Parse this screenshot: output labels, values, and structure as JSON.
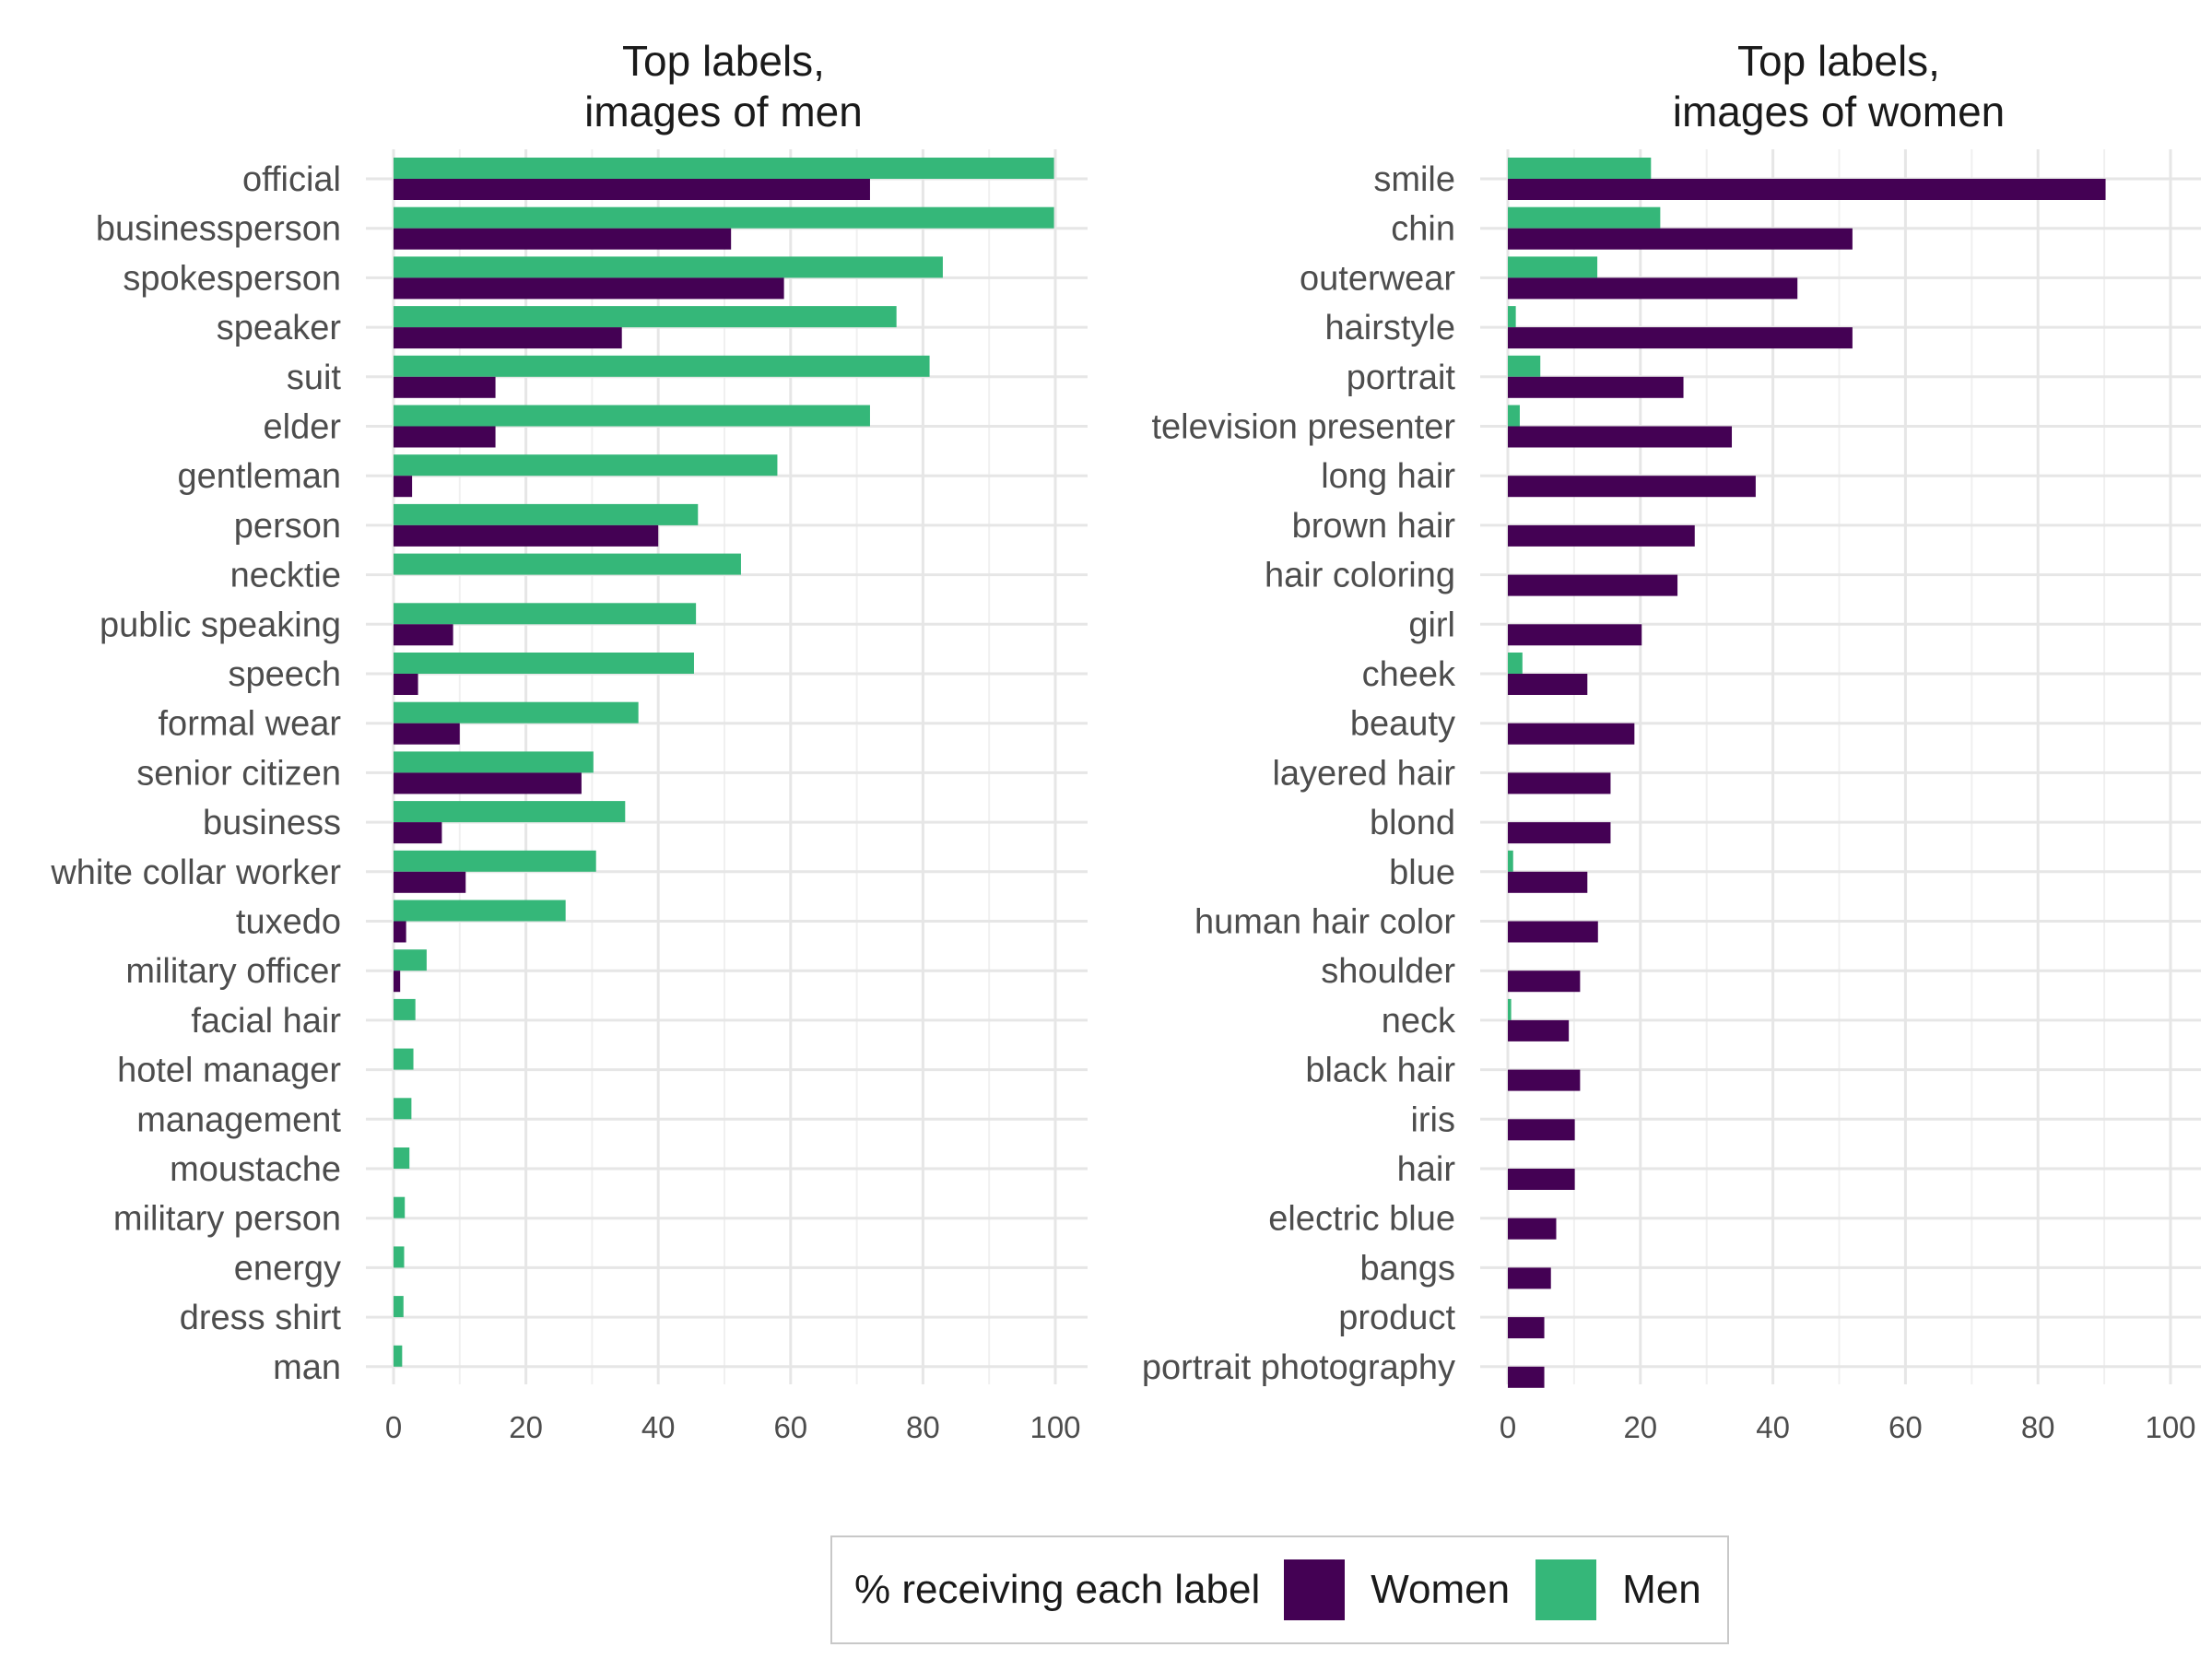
{
  "colors": {
    "women": "#440154",
    "men": "#35b779"
  },
  "legend": {
    "title": "% receiving each label",
    "women_label": "Women",
    "men_label": "Men"
  },
  "chart_data": [
    {
      "type": "bar",
      "orientation": "horizontal",
      "title": "Top labels,\nimages of men",
      "title_lines": [
        "Top labels,",
        "images of men"
      ],
      "xlim": [
        0,
        100
      ],
      "xticks": [
        0,
        20,
        40,
        60,
        80,
        100
      ],
      "grid": true,
      "categories": [
        "official",
        "businessperson",
        "spokesperson",
        "speaker",
        "suit",
        "elder",
        "gentleman",
        "person",
        "necktie",
        "public speaking",
        "speech",
        "formal wear",
        "senior citizen",
        "business",
        "white collar worker",
        "tuxedo",
        "military officer",
        "facial hair",
        "hotel manager",
        "management",
        "moustache",
        "military person",
        "energy",
        "dress shirt",
        "man"
      ],
      "series": [
        {
          "name": "Men",
          "values": [
            99.8,
            99.8,
            83,
            76,
            81,
            72,
            58,
            46,
            52.5,
            45.7,
            45.4,
            37,
            30.2,
            35,
            30.6,
            26,
            5,
            3.3,
            3,
            2.7,
            2.4,
            1.7,
            1.6,
            1.5,
            1.3
          ]
        },
        {
          "name": "Women",
          "values": [
            72,
            51,
            59,
            34.5,
            15.4,
            15.4,
            2.8,
            40,
            0,
            9,
            3.7,
            10,
            28.4,
            7.3,
            10.9,
            1.9,
            1,
            0,
            0,
            0,
            0,
            0,
            0,
            0,
            0
          ]
        }
      ]
    },
    {
      "type": "bar",
      "orientation": "horizontal",
      "title": "Top labels,\nimages of women",
      "title_lines": [
        "Top labels,",
        "images of women"
      ],
      "xlim": [
        0,
        100
      ],
      "xticks": [
        0,
        20,
        40,
        60,
        80,
        100
      ],
      "grid": true,
      "categories": [
        "smile",
        "chin",
        "outerwear",
        "hairstyle",
        "portrait",
        "television presenter",
        "long hair",
        "brown hair",
        "hair coloring",
        "girl",
        "cheek",
        "beauty",
        "layered hair",
        "blond",
        "blue",
        "human hair color",
        "shoulder",
        "neck",
        "black hair",
        "iris",
        "hair",
        "electric blue",
        "bangs",
        "product",
        "portrait photography"
      ],
      "series": [
        {
          "name": "Men",
          "values": [
            21.6,
            23,
            13.5,
            1.2,
            4.9,
            1.8,
            0,
            0,
            0,
            0,
            2.2,
            0,
            0,
            0,
            0.8,
            0,
            0,
            0.5,
            0,
            0,
            0,
            0,
            0,
            0,
            0
          ]
        },
        {
          "name": "Women",
          "values": [
            90.2,
            52,
            43.7,
            52,
            26.5,
            33.8,
            37.4,
            28.2,
            25.6,
            20.2,
            12,
            19.1,
            15.5,
            15.5,
            12,
            13.6,
            10.9,
            9.2,
            10.9,
            10.1,
            10.1,
            7.3,
            6.5,
            5.5,
            5.5
          ]
        }
      ]
    }
  ]
}
